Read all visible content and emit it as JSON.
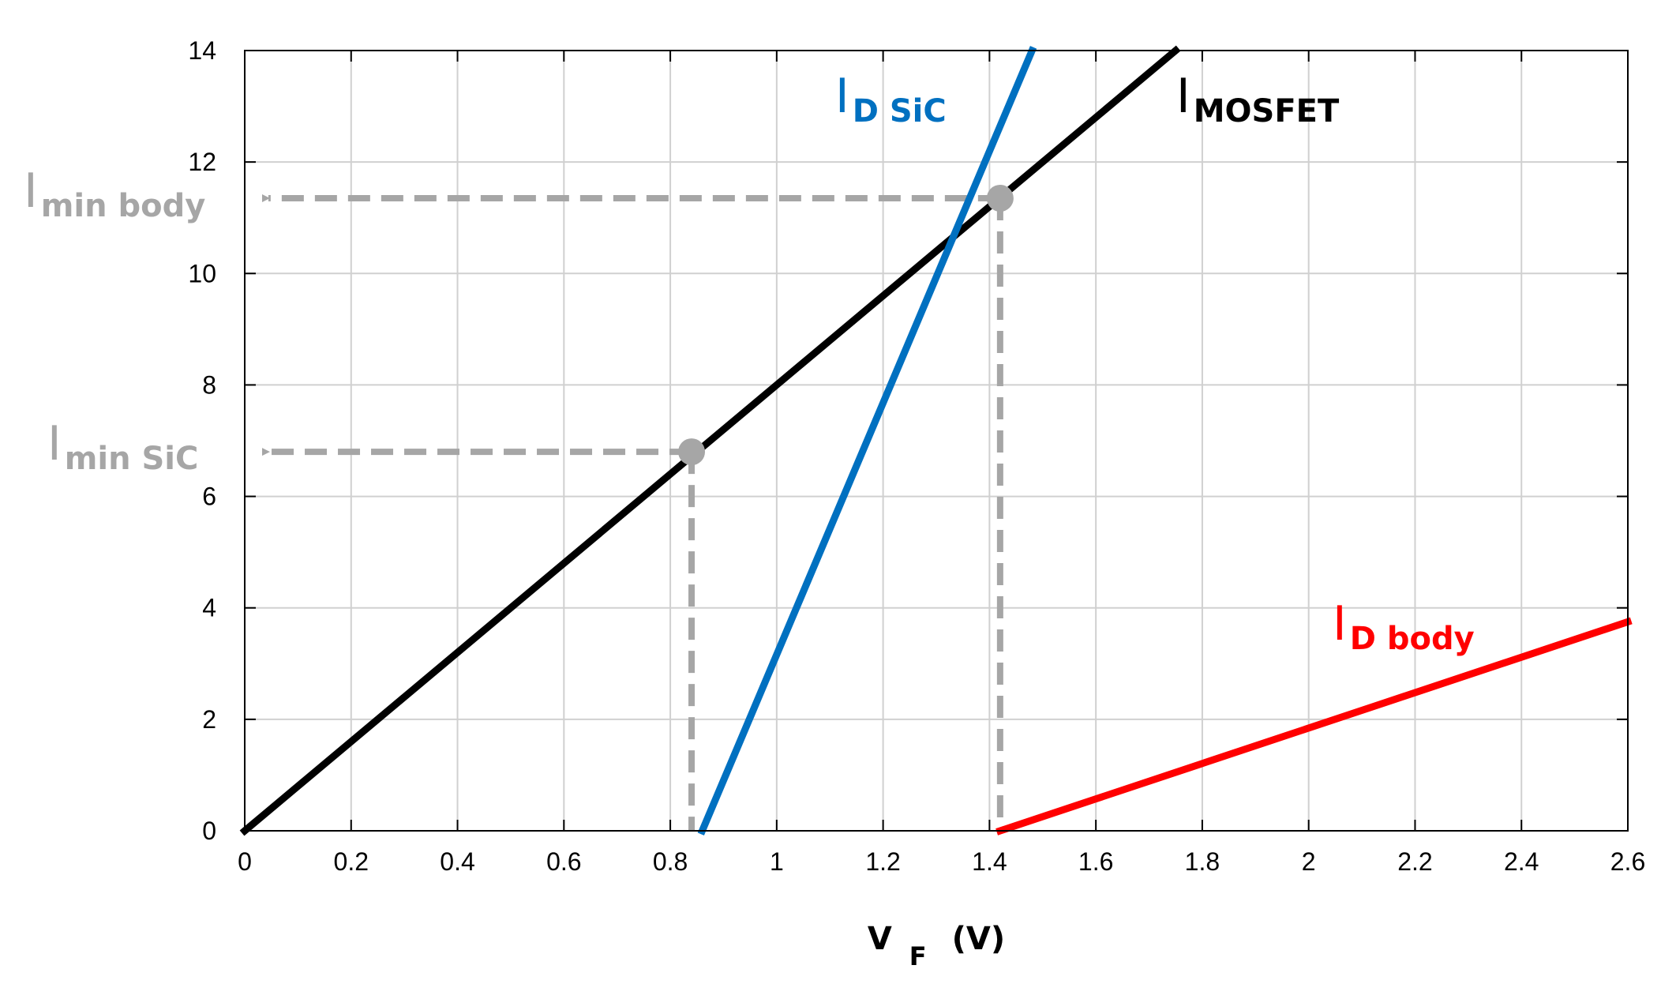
{
  "chart_data": {
    "type": "line",
    "xlabel_main": "V",
    "xlabel_sub": "F",
    "xlabel_unit": "(V)",
    "xlim": [
      0,
      2.6
    ],
    "ylim": [
      0,
      14
    ],
    "grid": true,
    "x_ticks": [
      "0",
      "0.2",
      "0.4",
      "0.6",
      "0.8",
      "1",
      "1.2",
      "1.4",
      "1.6",
      "1.8",
      "2",
      "2.2",
      "2.4",
      "2.6"
    ],
    "y_ticks": [
      "0",
      "2",
      "4",
      "6",
      "8",
      "10",
      "12",
      "14"
    ],
    "series": [
      {
        "name_main": "I",
        "name_sub": "MOSFET",
        "color": "#000000",
        "x": [
          0,
          1.75
        ],
        "y": [
          0,
          14
        ]
      },
      {
        "name_main": "I",
        "name_sub": "D SiC",
        "color": "#0070C0",
        "x": [
          0.86,
          1.48
        ],
        "y": [
          0,
          14
        ]
      },
      {
        "name_main": "I",
        "name_sub": "D body",
        "color": "#FF0000",
        "x": [
          1.42,
          2.6
        ],
        "y": [
          0,
          3.75
        ]
      }
    ],
    "markers": [
      {
        "name_main": "I",
        "name_sub": "min SiC",
        "color": "#A6A6A6",
        "x": 0.84,
        "y": 6.8
      },
      {
        "name_main": "I",
        "name_sub": "min body",
        "color": "#A6A6A6",
        "x": 1.42,
        "y": 11.35
      }
    ]
  }
}
